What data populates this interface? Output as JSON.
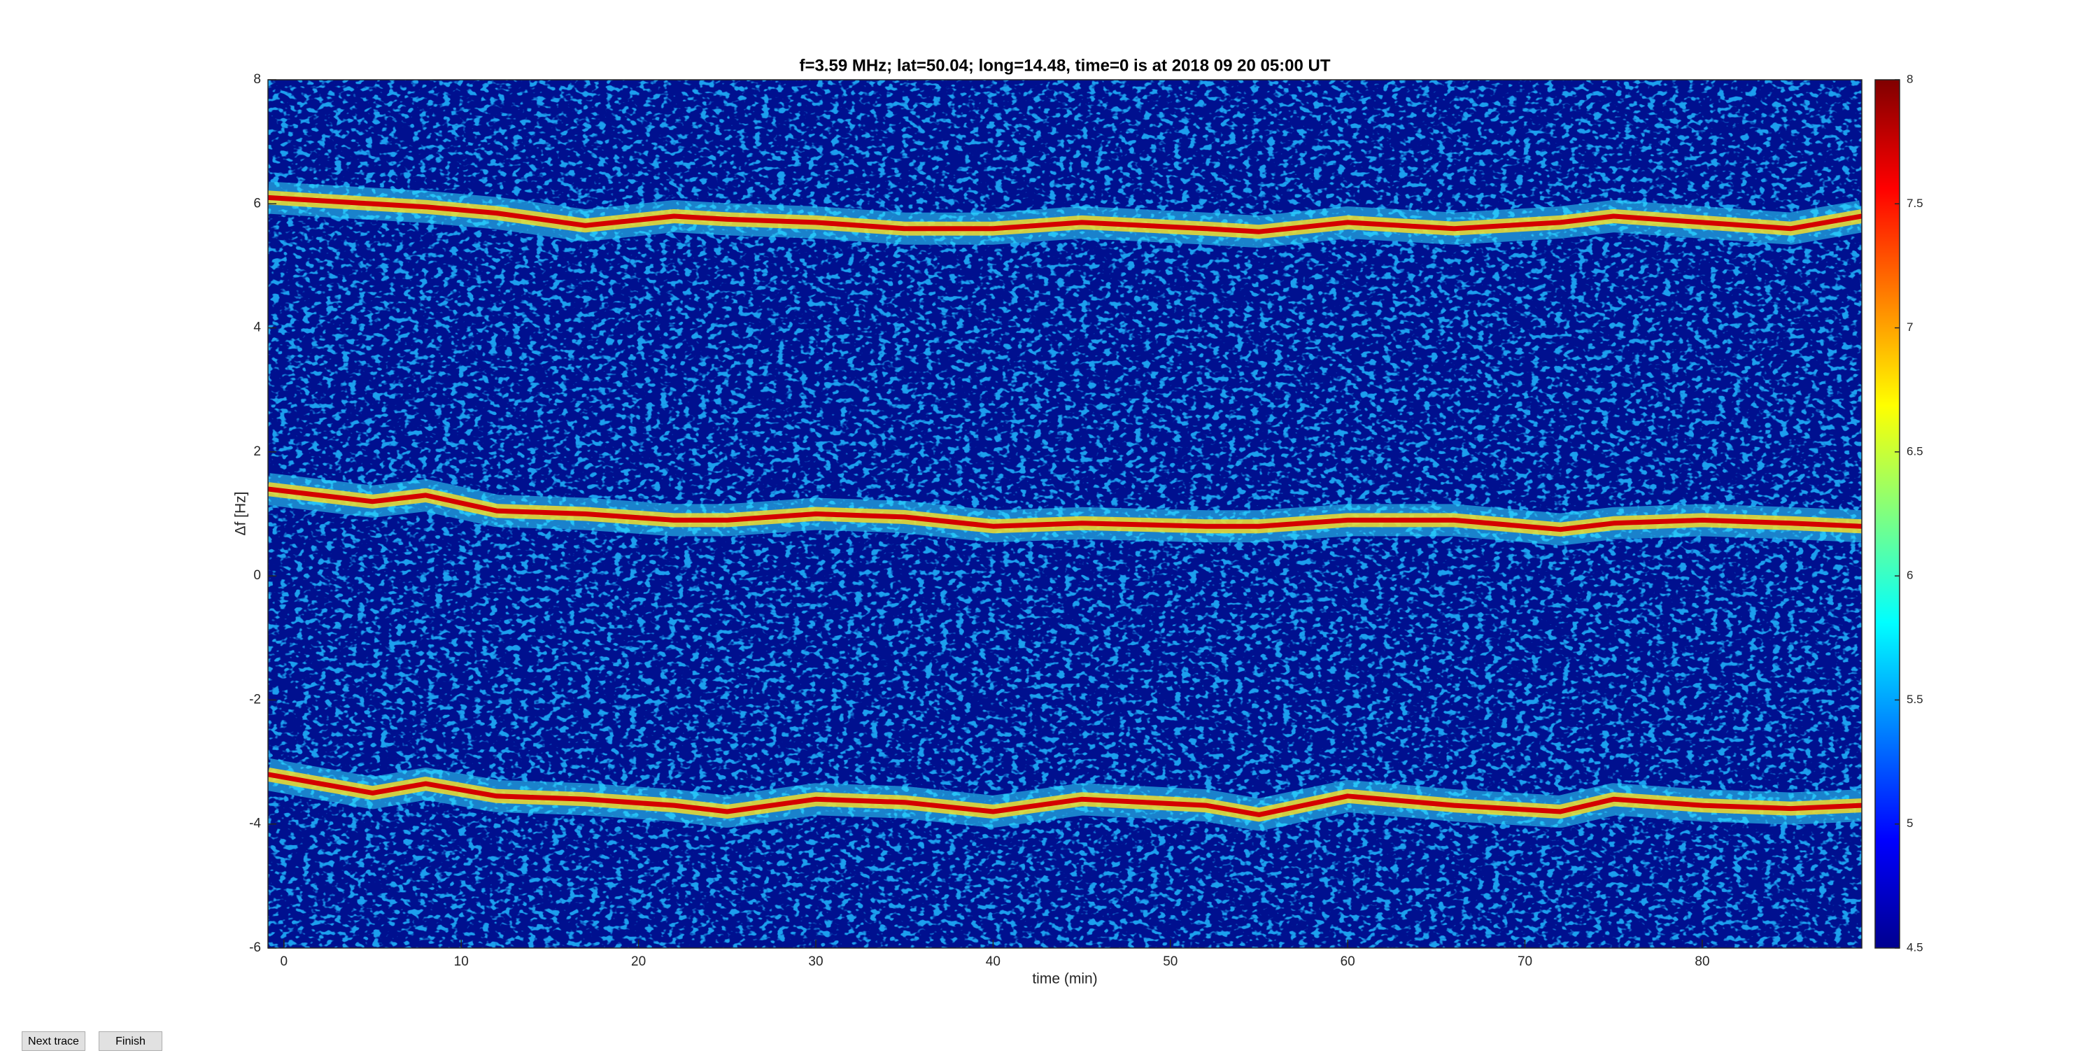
{
  "chart_data": {
    "type": "heatmap",
    "title": "f=3.59 MHz;  lat=50.04; long=14.48, time=0 is at 2018 09 20 05:00 UT",
    "xlabel": "time (min)",
    "ylabel": "Δf [Hz]",
    "xlim": [
      -0.9,
      89
    ],
    "xticks": [
      0,
      10,
      20,
      30,
      40,
      50,
      60,
      70,
      80
    ],
    "ylim": [
      -6,
      8
    ],
    "yticks": [
      -6,
      -4,
      -2,
      0,
      2,
      4,
      6,
      8
    ],
    "clim": [
      4.5,
      8
    ],
    "cticks": [
      4.5,
      5,
      5.5,
      6,
      6.5,
      7,
      7.5,
      8
    ],
    "background_color": "#00108f",
    "speckle_color": "#22b8ff",
    "trace_color": "#d40000",
    "x": [
      -0.9,
      5,
      8,
      12,
      17,
      22,
      25,
      30,
      35,
      40,
      45,
      52,
      55,
      60,
      66,
      72,
      75,
      80,
      85,
      89
    ],
    "series": [
      {
        "color": "#d40000",
        "values": [
          6.1,
          6.0,
          5.95,
          5.85,
          5.65,
          5.8,
          5.75,
          5.7,
          5.6,
          5.6,
          5.7,
          5.6,
          5.55,
          5.7,
          5.6,
          5.7,
          5.8,
          5.7,
          5.6,
          5.8
        ]
      },
      {
        "color": "#d40000",
        "values": [
          1.4,
          1.2,
          1.3,
          1.05,
          1.0,
          0.9,
          0.9,
          1.0,
          0.95,
          0.8,
          0.85,
          0.8,
          0.8,
          0.9,
          0.9,
          0.75,
          0.85,
          0.9,
          0.85,
          0.8
        ]
      },
      {
        "color": "#d40000",
        "values": [
          -3.2,
          -3.5,
          -3.35,
          -3.55,
          -3.6,
          -3.7,
          -3.8,
          -3.6,
          -3.65,
          -3.8,
          -3.6,
          -3.7,
          -3.85,
          -3.55,
          -3.7,
          -3.8,
          -3.6,
          -3.7,
          -3.75,
          -3.7
        ]
      }
    ]
  },
  "buttons": [
    "Next trace",
    "Finish"
  ]
}
